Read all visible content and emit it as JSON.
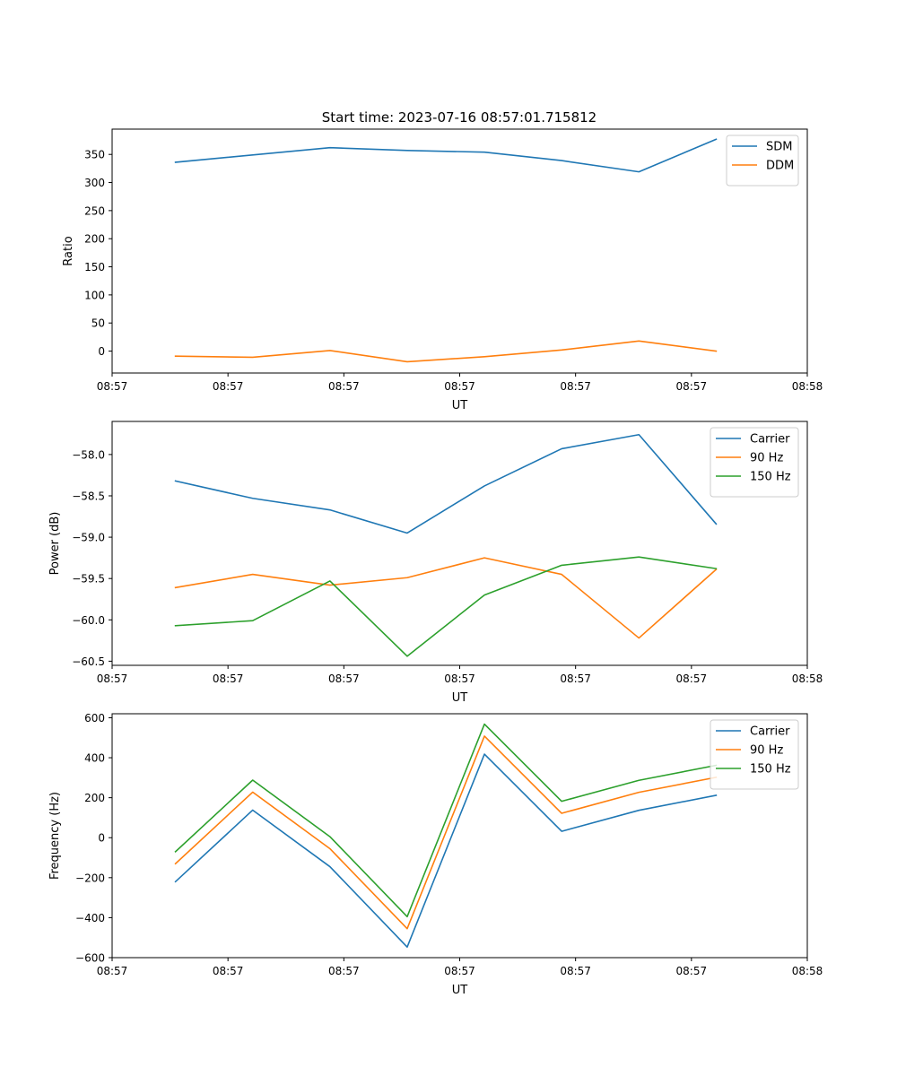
{
  "figure": {
    "title": "Start time: 2023-07-16 08:57:01.715812"
  },
  "chart_data": [
    {
      "type": "line",
      "xlabel": "UT",
      "ylabel": "Ratio",
      "x": [
        1,
        2,
        3,
        4,
        5,
        6,
        7,
        8
      ],
      "xlim": [
        0.18,
        9.18
      ],
      "ylim": [
        -39,
        395
      ],
      "x_ticks": [
        0.18,
        1.68,
        3.18,
        4.68,
        6.18,
        7.68,
        9.18
      ],
      "x_tick_labels": [
        "08:57",
        "08:57",
        "08:57",
        "08:57",
        "08:57",
        "08:57",
        "08:58"
      ],
      "y_ticks": [
        0,
        50,
        100,
        150,
        200,
        250,
        300,
        350
      ],
      "y_tick_labels": [
        "0",
        "50",
        "100",
        "150",
        "200",
        "250",
        "300",
        "350"
      ],
      "legend_position": "top-right",
      "series": [
        {
          "name": "SDM",
          "color": "#1f77b4",
          "values": [
            336,
            349,
            362,
            357,
            354,
            339,
            319,
            377
          ]
        },
        {
          "name": "DDM",
          "color": "#ff7f0e",
          "values": [
            -9,
            -11,
            1,
            -19,
            -10,
            2,
            18,
            0
          ]
        }
      ]
    },
    {
      "type": "line",
      "xlabel": "UT",
      "ylabel": "Power (dB)",
      "x": [
        1,
        2,
        3,
        4,
        5,
        6,
        7,
        8
      ],
      "xlim": [
        0.18,
        9.18
      ],
      "ylim": [
        -60.55,
        -57.6
      ],
      "x_ticks": [
        0.18,
        1.68,
        3.18,
        4.68,
        6.18,
        7.68,
        9.18
      ],
      "x_tick_labels": [
        "08:57",
        "08:57",
        "08:57",
        "08:57",
        "08:57",
        "08:57",
        "08:58"
      ],
      "y_ticks": [
        -60.5,
        -60.0,
        -59.5,
        -59.0,
        -58.5,
        -58.0
      ],
      "y_tick_labels": [
        "−60.5",
        "−60.0",
        "−59.5",
        "−59.0",
        "−58.5",
        "−58.0"
      ],
      "legend_position": "top-right",
      "series": [
        {
          "name": "Carrier",
          "color": "#1f77b4",
          "values": [
            -58.32,
            -58.53,
            -58.67,
            -58.95,
            -58.38,
            -57.93,
            -57.76,
            -58.84
          ]
        },
        {
          "name": "90 Hz",
          "color": "#ff7f0e",
          "values": [
            -59.61,
            -59.45,
            -59.58,
            -59.49,
            -59.25,
            -59.45,
            -60.22,
            -59.39
          ]
        },
        {
          "name": "150 Hz",
          "color": "#2ca02c",
          "values": [
            -60.07,
            -60.01,
            -59.53,
            -60.44,
            -59.7,
            -59.34,
            -59.24,
            -59.38
          ]
        }
      ]
    },
    {
      "type": "line",
      "xlabel": "UT",
      "ylabel": "Frequency (Hz)",
      "x": [
        1,
        2,
        3,
        4,
        5,
        6,
        7,
        8
      ],
      "xlim": [
        0.18,
        9.18
      ],
      "ylim": [
        -600,
        620
      ],
      "x_ticks": [
        0.18,
        1.68,
        3.18,
        4.68,
        6.18,
        7.68,
        9.18
      ],
      "x_tick_labels": [
        "08:57",
        "08:57",
        "08:57",
        "08:57",
        "08:57",
        "08:57",
        "08:58"
      ],
      "y_ticks": [
        -600,
        -400,
        -200,
        0,
        200,
        400,
        600
      ],
      "y_tick_labels": [
        "−600",
        "−400",
        "−200",
        "0",
        "200",
        "400",
        "600"
      ],
      "legend_position": "top-right",
      "series": [
        {
          "name": "Carrier",
          "color": "#1f77b4",
          "values": [
            -220,
            138,
            -145,
            -547,
            418,
            32,
            137,
            212
          ]
        },
        {
          "name": "90 Hz",
          "color": "#ff7f0e",
          "values": [
            -130,
            228,
            -55,
            -455,
            508,
            122,
            227,
            302
          ]
        },
        {
          "name": "150 Hz",
          "color": "#2ca02c",
          "values": [
            -70,
            288,
            5,
            -395,
            568,
            182,
            287,
            362
          ]
        }
      ]
    }
  ]
}
